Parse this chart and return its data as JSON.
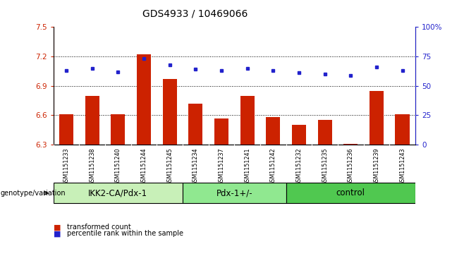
{
  "title": "GDS4933 / 10469066",
  "samples": [
    "GSM1151233",
    "GSM1151238",
    "GSM1151240",
    "GSM1151244",
    "GSM1151245",
    "GSM1151234",
    "GSM1151237",
    "GSM1151241",
    "GSM1151242",
    "GSM1151232",
    "GSM1151235",
    "GSM1151236",
    "GSM1151239",
    "GSM1151243"
  ],
  "groups": [
    {
      "label": "IKK2-CA/Pdx-1",
      "start": 0,
      "end": 5,
      "color": "#c8f0b8"
    },
    {
      "label": "Pdx-1+/-",
      "start": 5,
      "end": 9,
      "color": "#90e890"
    },
    {
      "label": "control",
      "start": 9,
      "end": 14,
      "color": "#50c850"
    }
  ],
  "red_values": [
    6.61,
    6.8,
    6.61,
    7.22,
    6.97,
    6.72,
    6.57,
    6.8,
    6.58,
    6.5,
    6.55,
    6.31,
    6.85,
    6.61
  ],
  "blue_values": [
    63,
    65,
    62,
    73,
    68,
    64,
    63,
    65,
    63,
    61,
    60,
    59,
    66,
    63
  ],
  "ylim_left": [
    6.3,
    7.5
  ],
  "ylim_right": [
    0,
    100
  ],
  "yticks_left": [
    6.3,
    6.6,
    6.9,
    7.2,
    7.5
  ],
  "yticks_right": [
    0,
    25,
    50,
    75,
    100
  ],
  "ytick_labels_left": [
    "6.3",
    "6.6",
    "6.9",
    "7.2",
    "7.5"
  ],
  "ytick_labels_right": [
    "0",
    "25",
    "50",
    "75",
    "100%"
  ],
  "hline_values": [
    6.6,
    6.9,
    7.2
  ],
  "bar_color": "#cc2200",
  "dot_color": "#2222cc",
  "bar_width": 0.55,
  "background_color": "#ffffff",
  "tick_bg_color": "#d8d8d8",
  "genotype_label": "genotype/variation",
  "legend_red": "transformed count",
  "legend_blue": "percentile rank within the sample",
  "tick_fontsize": 7.5,
  "group_label_fontsize": 8.5,
  "title_fontsize": 10
}
